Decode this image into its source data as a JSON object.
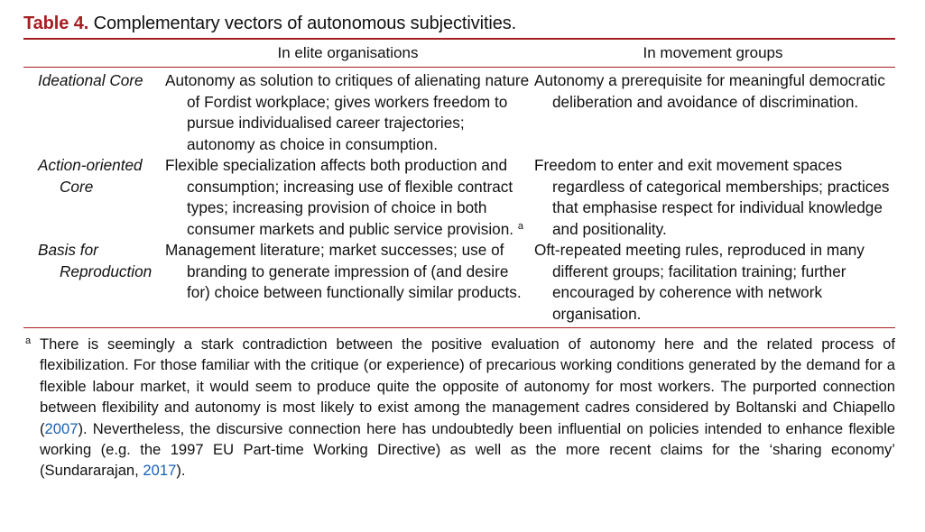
{
  "caption": {
    "label": "Table 4.",
    "title": "Complementary vectors of autonomous subjectivities."
  },
  "table": {
    "columns": [
      "",
      "In elite organisations",
      "In movement groups"
    ],
    "rows": [
      {
        "heading": "Ideational Core",
        "elite": "Autonomy as solution to critiques of alienating nature of Fordist workplace; gives workers freedom to pursue individualised career trajectories; autonomy as choice in consumption.",
        "movement": "Autonomy a prerequisite for meaningful democratic deliberation and avoidance of discrimination."
      },
      {
        "heading": "Action-oriented Core",
        "elite": "Flexible specialization affects both production and consumption; increasing use of flexible contract types; increasing provision of choice in both consumer markets and public service provision.",
        "elite_note_marker": "a",
        "movement": "Freedom to enter and exit movement spaces regardless of categorical memberships; practices that emphasise respect for individual knowledge and positionality."
      },
      {
        "heading": "Basis for Reproduction",
        "elite": "Management literature; market successes; use of branding to generate impression of (and desire for) choice between functionally similar products.",
        "movement": "Oft-repeated meeting rules, reproduced in many different groups; facilitation training; further encouraged by coherence with network organisation."
      }
    ]
  },
  "footnote": {
    "marker": "a",
    "text_1": "There is seemingly a stark contradiction between the positive evaluation of autonomy here and the related process of flexibilization. For those familiar with the critique (or experience) of precarious working conditions generated by the demand for a flexible labour market, it would seem to produce quite the opposite of autonomy for most workers. The purported connection between flexibility and autonomy is most likely to exist among the management cadres considered by Boltanski and Chiapello (",
    "cite_1": "2007",
    "text_2": "). Nevertheless, the discursive connection here has undoubtedly been influential on policies intended to enhance flexible working (e.g. the 1997 EU Part-time Working Directive) as well as the more recent claims for the ‘sharing economy’ (Sundararajan, ",
    "cite_2": "2017",
    "text_3": ")."
  },
  "colors": {
    "accent": "#a41e22",
    "link": "#1a5fb4",
    "text": "#111111"
  }
}
